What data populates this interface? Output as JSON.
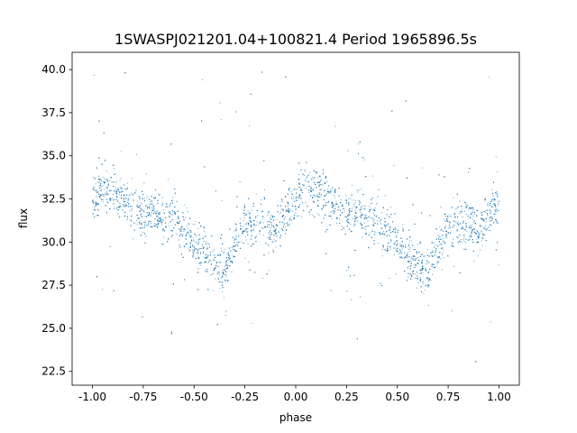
{
  "chart_data": {
    "type": "scatter",
    "title": "1SWASPJ021201.04+100821.4 Period 1965896.5s",
    "xlabel": "phase",
    "ylabel": "flux",
    "xlim": [
      -1.1,
      1.1
    ],
    "ylim": [
      21.7,
      41.0
    ],
    "xticks": [
      "-1.00",
      "-0.75",
      "-0.50",
      "-0.25",
      "0.00",
      "0.25",
      "0.50",
      "0.75",
      "1.00"
    ],
    "yticks": [
      "22.5",
      "25.0",
      "27.5",
      "30.0",
      "32.5",
      "35.0",
      "37.5",
      "40.0"
    ],
    "grid": false,
    "marker_color": "#1f77b4",
    "series": [
      {
        "trend_phase": [
          0.0,
          0.05,
          0.1,
          0.15,
          0.2,
          0.25,
          0.3,
          0.35,
          0.4,
          0.45,
          0.5,
          0.55,
          0.6,
          0.65,
          0.7,
          0.75,
          0.8,
          0.85,
          0.9,
          0.95,
          1.0
        ],
        "trend_flux": [
          32.5,
          33.3,
          33.1,
          32.6,
          32.0,
          31.6,
          31.8,
          31.2,
          31.5,
          30.6,
          30.0,
          29.6,
          28.6,
          28.2,
          29.8,
          30.8,
          31.0,
          31.2,
          30.7,
          31.6,
          32.3
        ]
      }
    ]
  }
}
